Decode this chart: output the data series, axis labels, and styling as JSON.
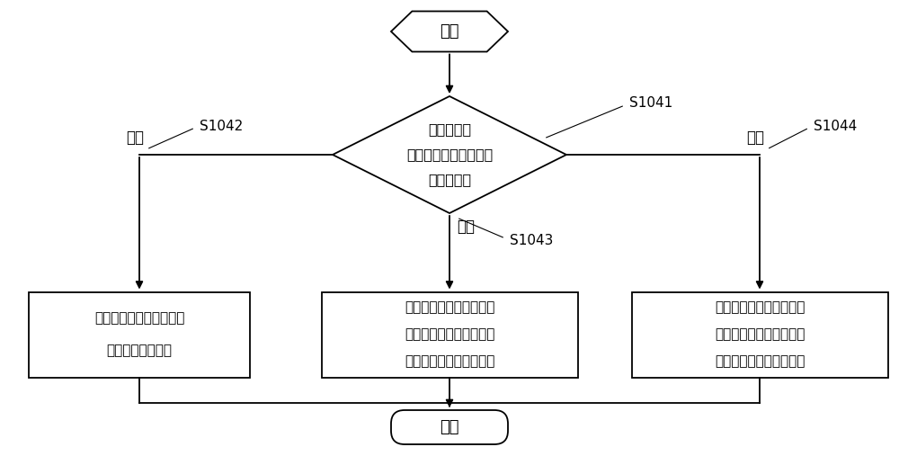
{
  "bg_color": "#ffffff",
  "text_color": "#000000",
  "box_edge_color": "#000000",
  "start_label": "开始",
  "end_label": "结束",
  "diamond_lines": [
    "判断下一个",
    "采样点信号值是否等于",
    "初始中位数"
  ],
  "diamond_label": "S1041",
  "box1_lines": [
    "当前排序列的中位数为下",
    "一个采样点信号值"
  ],
  "box1_label": "S1042",
  "box1_branch": "等于",
  "box2_lines": [
    "当前排序列的中位数为初",
    "始排序列中位于初始中位",
    "数后一位的采样点信号值"
  ],
  "box2_label": "S1043",
  "box2_branch": "大于",
  "box3_lines": [
    "当前排序列的中位数为初",
    "始排序列中位于初始中位",
    "数前一位的采样点信号值"
  ],
  "box3_label": "S1044",
  "box3_branch": "小于",
  "font_size_main": 13,
  "font_size_label": 11,
  "font_size_branch": 12,
  "lw": 1.3
}
